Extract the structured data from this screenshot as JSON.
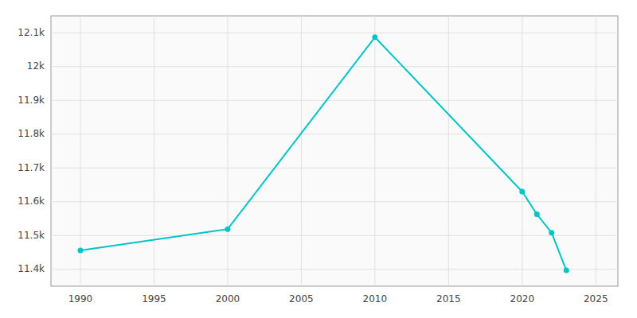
{
  "chart_data": {
    "type": "line",
    "x": [
      1990,
      2000,
      2010,
      2020,
      2021,
      2022,
      2023
    ],
    "values": [
      11456,
      11519,
      12087,
      11630,
      11563,
      11508,
      11397
    ],
    "color": "#00C5C8",
    "marker": "circle",
    "xlim": [
      1988,
      2026.5
    ],
    "xticks": [
      1990,
      1995,
      2000,
      2005,
      2010,
      2015,
      2020,
      2025
    ],
    "ylim": [
      11350,
      12150
    ],
    "yticks": [
      {
        "value": 11400,
        "label": "11.4k"
      },
      {
        "value": 11500,
        "label": "11.5k"
      },
      {
        "value": 11600,
        "label": "11.6k"
      },
      {
        "value": 11700,
        "label": "11.7k"
      },
      {
        "value": 11800,
        "label": "11.8k"
      },
      {
        "value": 11900,
        "label": "11.9k"
      },
      {
        "value": 12000,
        "label": "12k"
      },
      {
        "value": 12100,
        "label": "12.1k"
      }
    ],
    "grid": true
  }
}
